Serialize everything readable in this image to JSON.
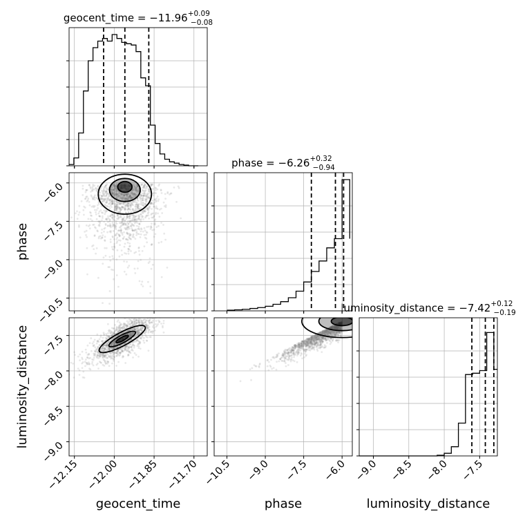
{
  "chart_data": {
    "type": "corner",
    "parameters": [
      "geocent_time",
      "phase",
      "luminosity_distance"
    ],
    "titles": [
      {
        "param": "geocent_time",
        "text": "geocent_time = −11.96",
        "plus": "+0.09",
        "minus": "−0.08",
        "median": -11.96,
        "q_low": -12.04,
        "q_high": -11.87
      },
      {
        "param": "phase",
        "text": "phase = −6.26",
        "plus": "+0.32",
        "minus": "−0.94",
        "median": -6.26,
        "q_low": -7.2,
        "q_high": -5.94
      },
      {
        "param": "luminosity_distance",
        "text": "luminosity_distance = −7.42",
        "plus": "+0.12",
        "minus": "−0.19",
        "median": -7.42,
        "q_low": -7.61,
        "q_high": -7.3
      }
    ],
    "ranges": {
      "geocent_time": [
        -12.17,
        -11.65
      ],
      "phase": [
        -11.0,
        -5.6
      ],
      "luminosity_distance": [
        -9.2,
        -7.25
      ]
    },
    "ticks": {
      "geocent_time": {
        "values": [
          -12.15,
          -12.0,
          -11.85,
          -11.7
        ],
        "labels": [
          "−12.15",
          "−12.00",
          "−11.85",
          "−11.70"
        ]
      },
      "phase": {
        "values": [
          -10.5,
          -9.0,
          -7.5,
          -6.0
        ],
        "labels": [
          "−10.5",
          "−9.0",
          "−7.5",
          "−6.0"
        ]
      },
      "luminosity_distance": {
        "values": [
          -9.0,
          -8.5,
          -8.0,
          -7.5
        ],
        "labels": [
          "−9.0",
          "−8.5",
          "−8.0",
          "−7.5"
        ]
      }
    },
    "histograms": {
      "geocent_time": {
        "edges": [
          -12.17,
          -12.152,
          -12.134,
          -12.116,
          -12.098,
          -12.08,
          -12.062,
          -12.044,
          -12.026,
          -12.008,
          -11.99,
          -11.972,
          -11.954,
          -11.936,
          -11.918,
          -11.9,
          -11.882,
          -11.864,
          -11.846,
          -11.828,
          -11.81,
          -11.792,
          -11.774,
          -11.756,
          -11.738,
          -11.72,
          -11.702,
          -11.684
        ],
        "counts": [
          0.01,
          0.06,
          0.25,
          0.57,
          0.8,
          0.9,
          0.95,
          0.97,
          0.95,
          1.0,
          0.97,
          0.94,
          0.93,
          0.92,
          0.87,
          0.67,
          0.61,
          0.31,
          0.17,
          0.09,
          0.05,
          0.03,
          0.02,
          0.01,
          0.005,
          0.0,
          0.0
        ]
      },
      "phase": {
        "edges": [
          -10.5,
          -10.2,
          -9.9,
          -9.6,
          -9.3,
          -9.0,
          -8.7,
          -8.4,
          -8.1,
          -7.8,
          -7.5,
          -7.2,
          -6.9,
          -6.6,
          -6.3,
          -6.0,
          -5.7
        ],
        "counts": [
          0.005,
          0.008,
          0.012,
          0.018,
          0.025,
          0.035,
          0.05,
          0.07,
          0.1,
          0.15,
          0.22,
          0.3,
          0.38,
          0.48,
          0.55,
          1.0,
          0.55
        ]
      },
      "luminosity_distance": {
        "edges": [
          -9.2,
          -9.1,
          -9.0,
          -8.9,
          -8.8,
          -8.7,
          -8.6,
          -8.5,
          -8.4,
          -8.3,
          -8.2,
          -8.1,
          -8.0,
          -7.9,
          -7.8,
          -7.7,
          -7.6,
          -7.5,
          -7.4,
          -7.3,
          -7.2
        ],
        "counts": [
          0.0,
          0.0,
          0.0,
          0.0,
          0.0,
          0.0,
          0.0,
          0.0,
          0.0,
          0.0,
          0.0,
          0.005,
          0.02,
          0.07,
          0.25,
          0.62,
          0.63,
          0.65,
          0.94,
          0.66,
          0.66
        ]
      }
    },
    "contours_2d": [
      {
        "x": "geocent_time",
        "y": "phase",
        "peak": [
          -11.96,
          -6.05
        ]
      },
      {
        "x": "geocent_time",
        "y": "luminosity_distance",
        "peak": [
          -11.97,
          -7.55
        ]
      },
      {
        "x": "phase",
        "y": "luminosity_distance",
        "peak": [
          -6.0,
          -7.3
        ]
      }
    ],
    "grid": true
  }
}
